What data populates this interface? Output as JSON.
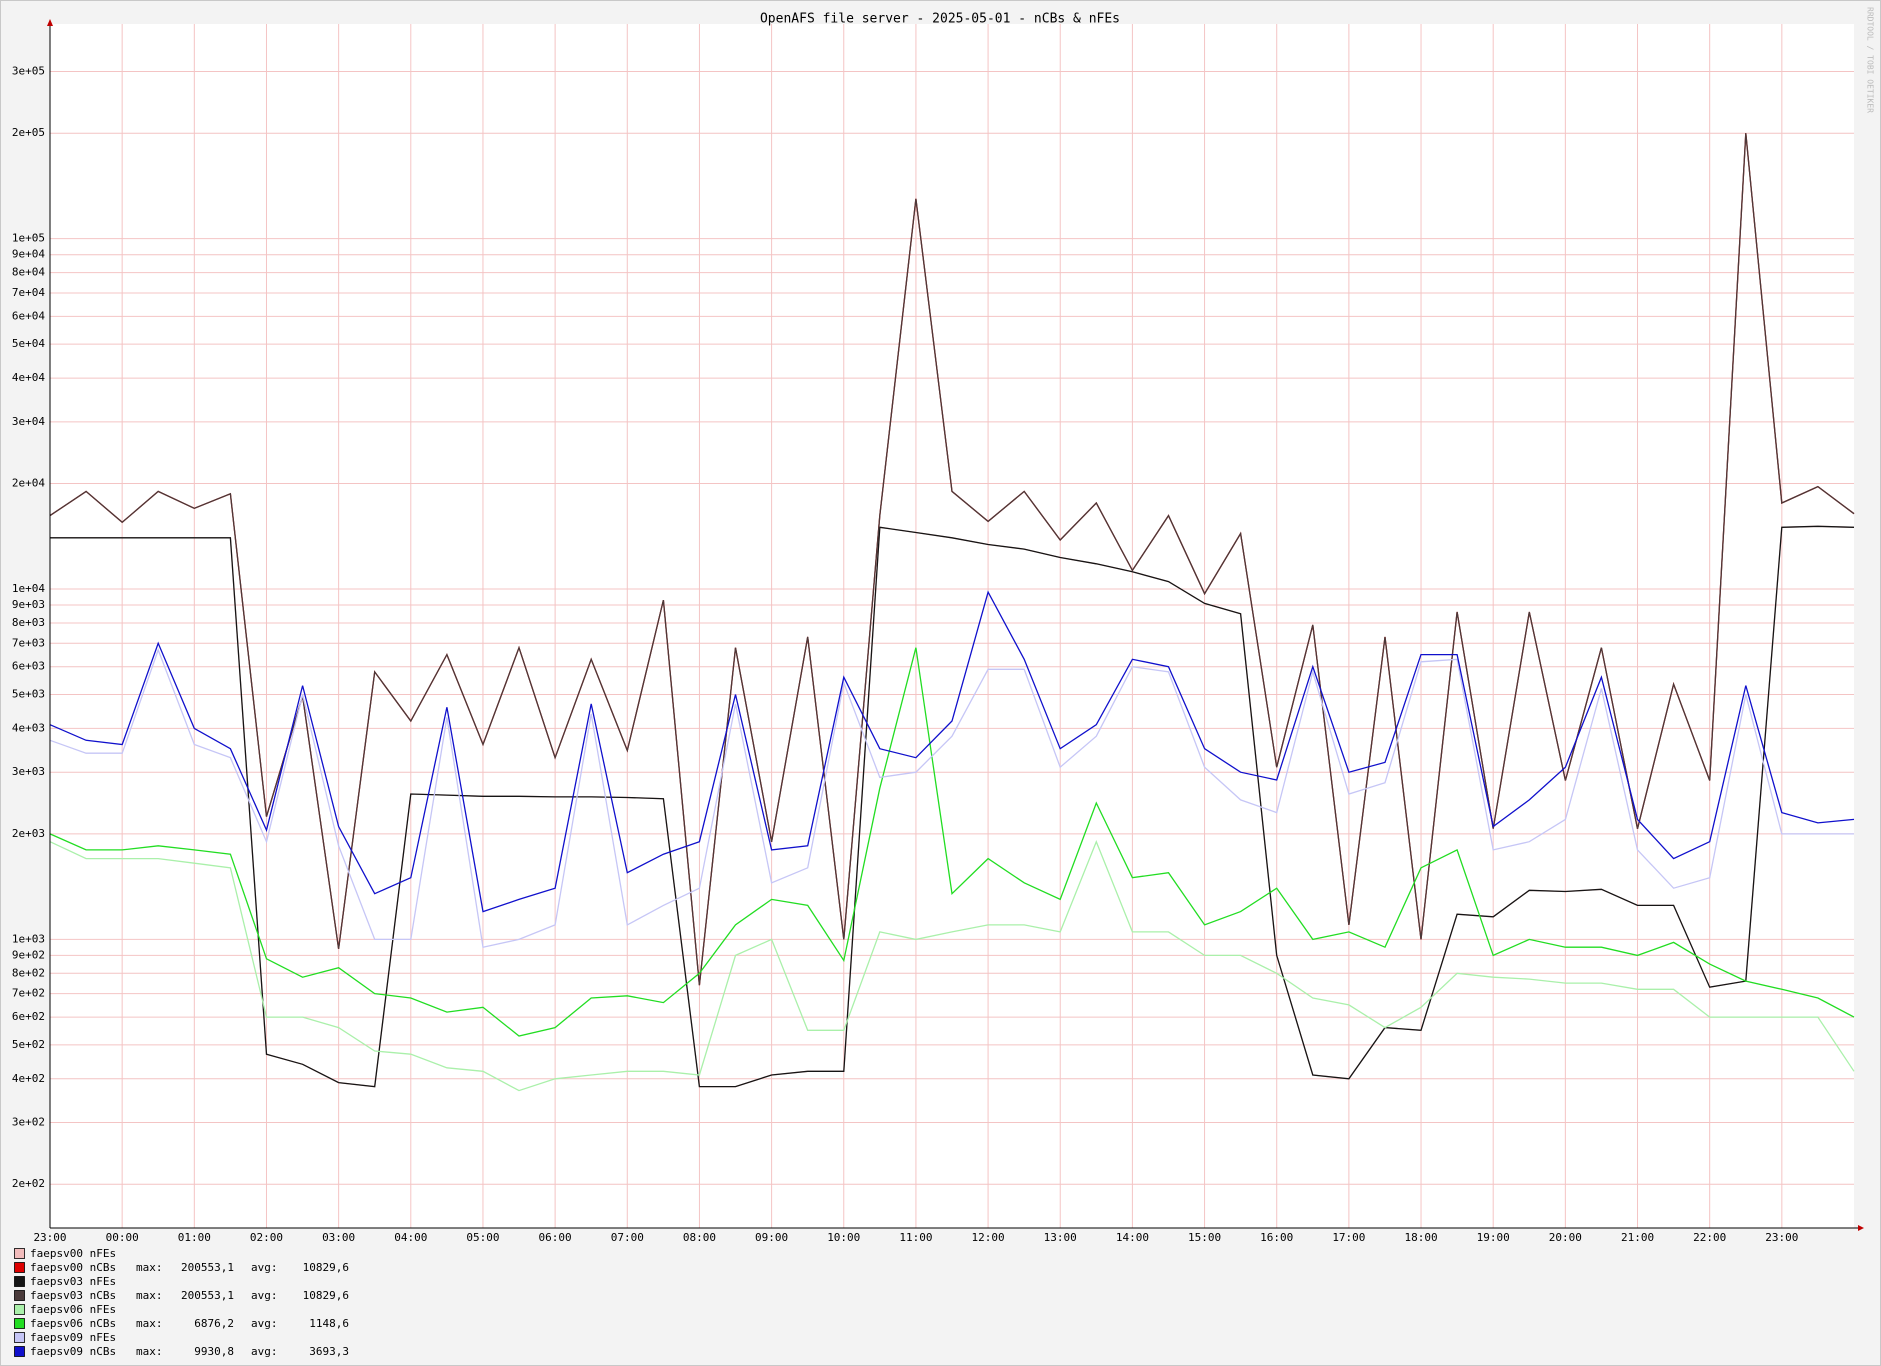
{
  "chart_data": {
    "type": "line",
    "title": "OpenAFS file server - 2025-05-01 - nCBs & nFEs",
    "watermark": "RRDTOOL / TOBI OETIKER",
    "log_y": true,
    "grid": true,
    "legend_max_label": "max:",
    "legend_avg_label": "avg:",
    "xlim": [
      0,
      25
    ],
    "xticks": [
      {
        "value": 0,
        "label": "23:00"
      },
      {
        "value": 1,
        "label": "00:00"
      },
      {
        "value": 2,
        "label": "01:00"
      },
      {
        "value": 3,
        "label": "02:00"
      },
      {
        "value": 4,
        "label": "03:00"
      },
      {
        "value": 5,
        "label": "04:00"
      },
      {
        "value": 6,
        "label": "05:00"
      },
      {
        "value": 7,
        "label": "06:00"
      },
      {
        "value": 8,
        "label": "07:00"
      },
      {
        "value": 9,
        "label": "08:00"
      },
      {
        "value": 10,
        "label": "09:00"
      },
      {
        "value": 11,
        "label": "10:00"
      },
      {
        "value": 12,
        "label": "11:00"
      },
      {
        "value": 13,
        "label": "12:00"
      },
      {
        "value": 14,
        "label": "13:00"
      },
      {
        "value": 15,
        "label": "14:00"
      },
      {
        "value": 16,
        "label": "15:00"
      },
      {
        "value": 17,
        "label": "16:00"
      },
      {
        "value": 18,
        "label": "17:00"
      },
      {
        "value": 19,
        "label": "18:00"
      },
      {
        "value": 20,
        "label": "19:00"
      },
      {
        "value": 21,
        "label": "20:00"
      },
      {
        "value": 22,
        "label": "21:00"
      },
      {
        "value": 23,
        "label": "22:00"
      },
      {
        "value": 24,
        "label": "23:00"
      }
    ],
    "ylim": [
      150,
      410000
    ],
    "yticks": [
      {
        "value": 200,
        "label": "2e+02"
      },
      {
        "value": 300,
        "label": "3e+02"
      },
      {
        "value": 400,
        "label": "4e+02"
      },
      {
        "value": 500,
        "label": "5e+02"
      },
      {
        "value": 600,
        "label": "6e+02"
      },
      {
        "value": 700,
        "label": "7e+02"
      },
      {
        "value": 800,
        "label": "8e+02"
      },
      {
        "value": 900,
        "label": "9e+02"
      },
      {
        "value": 1000,
        "label": "1e+03"
      },
      {
        "value": 2000,
        "label": "2e+03"
      },
      {
        "value": 3000,
        "label": "3e+03"
      },
      {
        "value": 4000,
        "label": "4e+03"
      },
      {
        "value": 5000,
        "label": "5e+03"
      },
      {
        "value": 6000,
        "label": "6e+03"
      },
      {
        "value": 7000,
        "label": "7e+03"
      },
      {
        "value": 8000,
        "label": "8e+03"
      },
      {
        "value": 9000,
        "label": "9e+03"
      },
      {
        "value": 10000,
        "label": "1e+04"
      },
      {
        "value": 20000,
        "label": "2e+04"
      },
      {
        "value": 30000,
        "label": "3e+04"
      },
      {
        "value": 40000,
        "label": "4e+04"
      },
      {
        "value": 50000,
        "label": "5e+04"
      },
      {
        "value": 60000,
        "label": "6e+04"
      },
      {
        "value": 70000,
        "label": "7e+04"
      },
      {
        "value": 80000,
        "label": "8e+04"
      },
      {
        "value": 90000,
        "label": "9e+04"
      },
      {
        "value": 100000,
        "label": "1e+05"
      },
      {
        "value": 200000,
        "label": "2e+05"
      },
      {
        "value": 300000,
        "label": "3e+05"
      }
    ],
    "x": [
      0,
      0.5,
      1,
      1.5,
      2,
      2.5,
      3,
      3.5,
      4,
      4.5,
      5,
      5.5,
      6,
      6.5,
      7,
      7.5,
      8,
      8.5,
      9,
      9.5,
      10,
      10.5,
      11,
      11.5,
      12,
      12.5,
      13,
      13.5,
      14,
      14.5,
      15,
      15.5,
      16,
      16.5,
      17,
      17.5,
      18,
      18.5,
      19,
      19.5,
      20,
      20.5,
      21,
      21.5,
      22,
      22.5,
      23,
      23.5,
      24,
      24.5,
      25
    ],
    "series": [
      {
        "name": "faepsv00 nFEs",
        "color": "#f2bcbc",
        "values": [
          14000,
          14000,
          14000,
          14000,
          14000,
          14000,
          470,
          440,
          390,
          380,
          2600,
          2580,
          2560,
          2560,
          2550,
          2550,
          2540,
          2520,
          380,
          380,
          410,
          420,
          420,
          15000,
          14500,
          14000,
          13400,
          13000,
          12300,
          11800,
          11200,
          10500,
          9100,
          8500,
          900,
          410,
          400,
          560,
          550,
          1180,
          1160,
          1380,
          1370,
          1390,
          1250,
          1250,
          730,
          760,
          15000,
          15100,
          15000
        ]
      },
      {
        "name": "faepsv00 nCBs",
        "color": "#dd0000",
        "max": "200553,1",
        "avg": "10829,6",
        "values": [
          16200,
          19000,
          15500,
          19000,
          17000,
          18700,
          2240,
          4950,
          940,
          5800,
          4200,
          6500,
          3600,
          6800,
          3300,
          6300,
          3460,
          9300,
          740,
          6800,
          1900,
          7300,
          1000,
          16200,
          130000,
          19000,
          15600,
          19000,
          13800,
          17600,
          11300,
          16200,
          9700,
          14400,
          3100,
          7900,
          1100,
          7300,
          1000,
          8600,
          2070,
          8600,
          2840,
          6800,
          2070,
          5350,
          2840,
          200000,
          17600,
          19600,
          16400
        ]
      },
      {
        "name": "faepsv03 nFEs",
        "color": "#151515",
        "values": [
          14000,
          14000,
          14000,
          14000,
          14000,
          14000,
          470,
          440,
          390,
          380,
          2600,
          2580,
          2560,
          2560,
          2550,
          2550,
          2540,
          2520,
          380,
          380,
          410,
          420,
          420,
          15000,
          14500,
          14000,
          13400,
          13000,
          12300,
          11800,
          11200,
          10500,
          9100,
          8500,
          900,
          410,
          400,
          560,
          550,
          1180,
          1160,
          1380,
          1370,
          1390,
          1250,
          1250,
          730,
          760,
          15000,
          15100,
          15000
        ]
      },
      {
        "name": "faepsv03 nCBs",
        "color": "#4a3a3a",
        "max": "200553,1",
        "avg": "10829,6",
        "values": [
          16200,
          19000,
          15500,
          19000,
          17000,
          18700,
          2240,
          4950,
          940,
          5800,
          4200,
          6500,
          3600,
          6800,
          3300,
          6300,
          3460,
          9300,
          740,
          6800,
          1900,
          7300,
          1000,
          16200,
          130000,
          19000,
          15600,
          19000,
          13800,
          17600,
          11300,
          16200,
          9700,
          14400,
          3100,
          7900,
          1100,
          7300,
          1000,
          8600,
          2070,
          8600,
          2840,
          6800,
          2070,
          5350,
          2840,
          200000,
          17600,
          19600,
          16400
        ]
      },
      {
        "name": "faepsv06 nFEs",
        "color": "#aaf0aa",
        "values": [
          1900,
          1700,
          1700,
          1700,
          1650,
          1600,
          600,
          600,
          560,
          480,
          470,
          430,
          420,
          370,
          400,
          410,
          420,
          420,
          410,
          900,
          1000,
          550,
          550,
          1050,
          1000,
          1050,
          1100,
          1100,
          1050,
          1900,
          1050,
          1050,
          900,
          900,
          800,
          680,
          650,
          560,
          640,
          800,
          780,
          770,
          750,
          750,
          720,
          720,
          600,
          600,
          600,
          600,
          420
        ]
      },
      {
        "name": "faepsv06 nCBs",
        "color": "#22dd22",
        "max": "6876,2",
        "avg": "1148,6",
        "values": [
          2000,
          1800,
          1800,
          1850,
          1800,
          1750,
          880,
          780,
          830,
          700,
          680,
          620,
          640,
          530,
          560,
          680,
          690,
          660,
          800,
          1100,
          1300,
          1250,
          870,
          2700,
          6800,
          1350,
          1700,
          1450,
          1300,
          2450,
          1500,
          1550,
          1100,
          1200,
          1400,
          1000,
          1050,
          950,
          1600,
          1800,
          900,
          1000,
          950,
          950,
          900,
          980,
          850,
          760,
          720,
          680,
          600
        ]
      },
      {
        "name": "faepsv09 nFEs",
        "color": "#c6c6f6",
        "values": [
          3700,
          3400,
          3400,
          6700,
          3600,
          3300,
          1900,
          5000,
          1850,
          1000,
          1000,
          4300,
          950,
          1000,
          1100,
          4400,
          1100,
          1250,
          1400,
          4700,
          1450,
          1600,
          5400,
          2900,
          3000,
          3800,
          5900,
          5900,
          3100,
          3800,
          6000,
          5800,
          3100,
          2500,
          2300,
          5800,
          2600,
          2800,
          6200,
          6300,
          1800,
          1900,
          2200,
          5200,
          1800,
          1400,
          1500,
          5000,
          2000,
          2000,
          2000
        ]
      },
      {
        "name": "faepsv09 nCBs",
        "color": "#1010cc",
        "max": "9930,8",
        "avg": "3693,3",
        "values": [
          4100,
          3700,
          3600,
          7000,
          4000,
          3500,
          2050,
          5300,
          2100,
          1350,
          1500,
          4600,
          1200,
          1300,
          1400,
          4700,
          1550,
          1750,
          1900,
          5000,
          1800,
          1850,
          5600,
          3500,
          3300,
          4200,
          9800,
          6300,
          3500,
          4100,
          6300,
          6000,
          3500,
          3000,
          2850,
          6000,
          3000,
          3200,
          6500,
          6500,
          2100,
          2500,
          3100,
          5600,
          2200,
          1700,
          1900,
          5300,
          2300,
          2150,
          2200
        ]
      }
    ]
  }
}
